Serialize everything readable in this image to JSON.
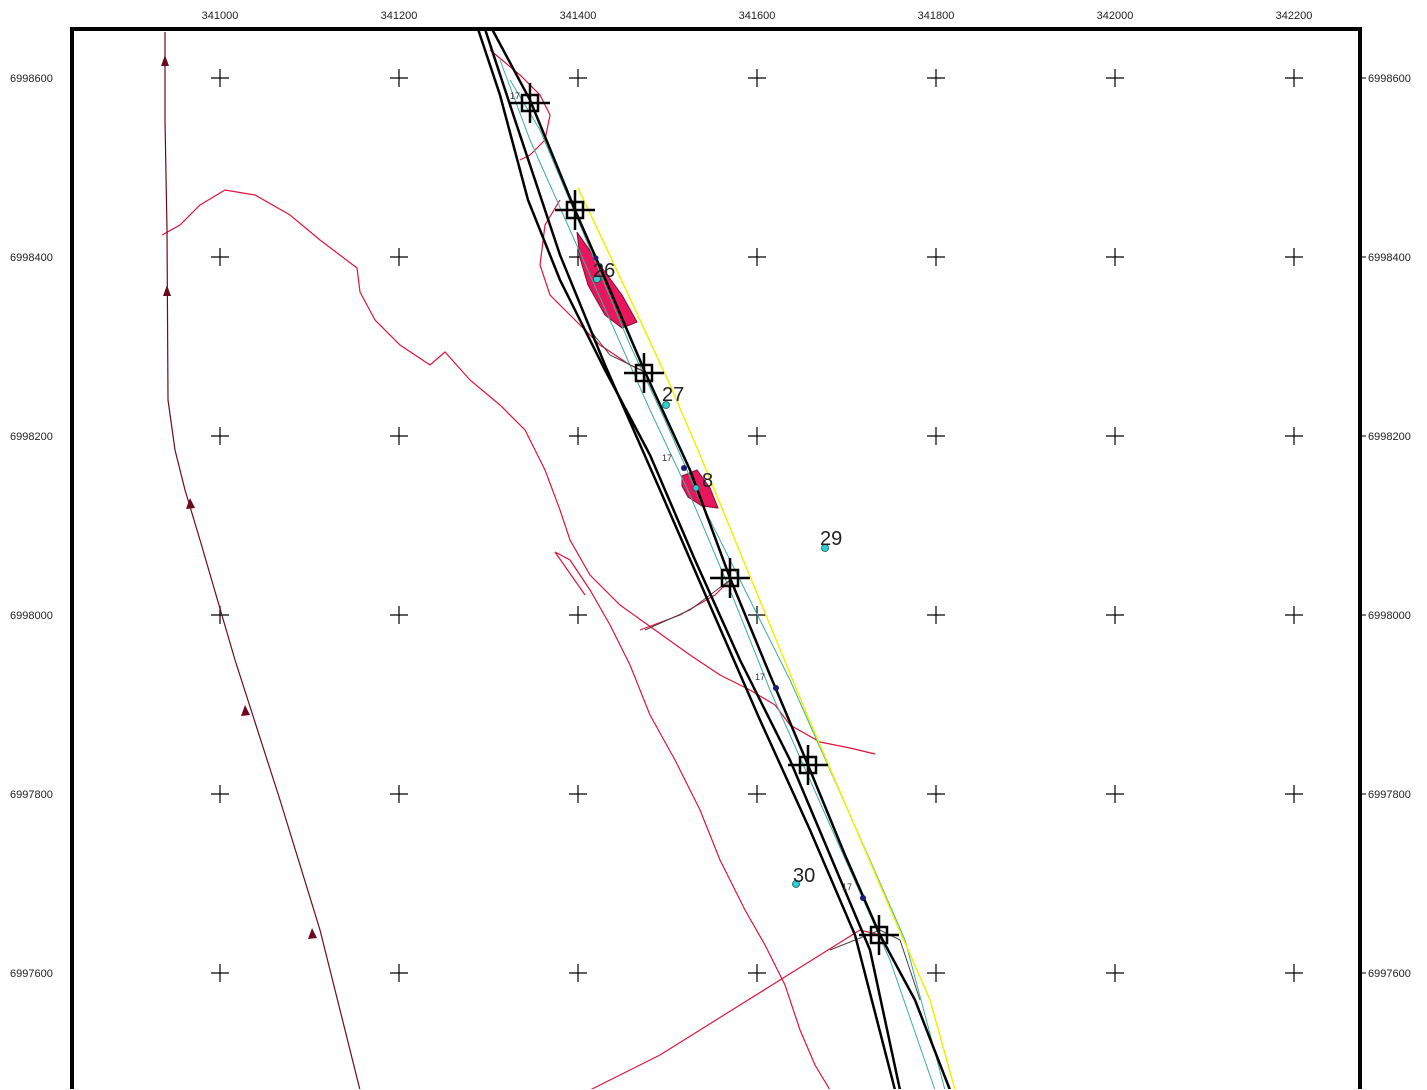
{
  "map": {
    "x_ticks": [
      "341000",
      "341200",
      "341400",
      "341600",
      "341800",
      "342000",
      "342200"
    ],
    "y_ticks": [
      "6998600",
      "6998400",
      "6998200",
      "6998000",
      "6997800",
      "6997600"
    ],
    "point_labels": [
      "26",
      "27",
      "29",
      "30"
    ],
    "partial_labels": [
      "17",
      "17",
      "17",
      "17",
      "8"
    ],
    "colors": {
      "frame": "#000000",
      "grid_cross": "#000000",
      "red_contour": "#e0143c",
      "track": "#6b0a1c",
      "yellow_line": "#f0f000",
      "teal_line": "#3fae9a",
      "pink_fill": "#e8175d",
      "cyan_point": "#2fd0d0",
      "navy_point": "#1a1a7a"
    },
    "icons": [
      "station-crosshair-icon",
      "grid-cross-icon",
      "track-arrow-icon"
    ]
  }
}
